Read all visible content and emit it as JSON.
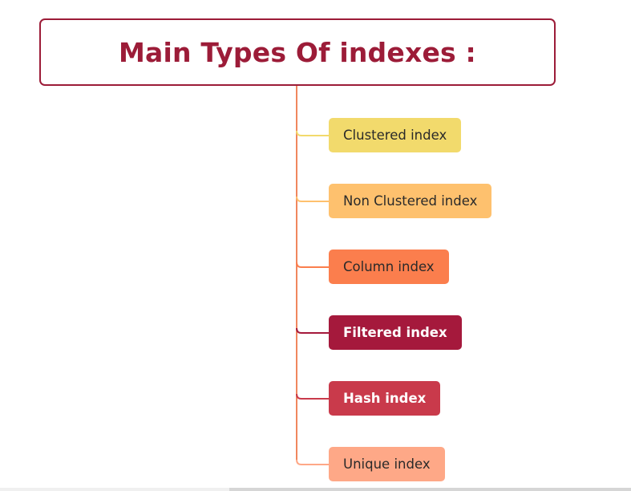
{
  "diagram": {
    "title": "Main Types Of indexes :",
    "title_color": "#9c1c38",
    "trunk_color": "#f0875e",
    "nodes": [
      {
        "label": "Clustered index",
        "bg": "#f2da6c",
        "fg": "#2a2a2a",
        "connector": "#f2da6c"
      },
      {
        "label": "Non Clustered index",
        "bg": "#fec16e",
        "fg": "#2a2a2a",
        "connector": "#fec16e"
      },
      {
        "label": "Column index",
        "bg": "#fb7e4d",
        "fg": "#2a2a2a",
        "connector": "#fb7e4d"
      },
      {
        "label": "Filtered index",
        "bg": "#a5193c",
        "fg": "#ffffff",
        "connector": "#a5193c"
      },
      {
        "label": "Hash index",
        "bg": "#c93a4b",
        "fg": "#ffffff",
        "connector": "#c93a4b"
      },
      {
        "label": "Unique index",
        "bg": "#fea887",
        "fg": "#2a2a2a",
        "connector": "#fea887"
      }
    ]
  }
}
